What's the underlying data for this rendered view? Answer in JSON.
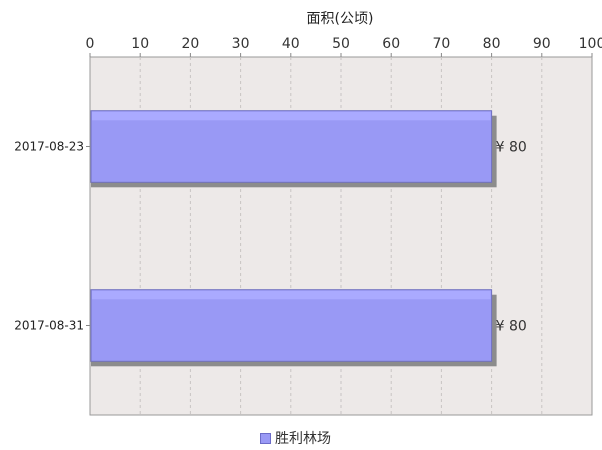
{
  "chart_data": {
    "type": "bar",
    "orientation": "horizontal",
    "xlabel": "面积(公顷)",
    "ylabel": "",
    "title": "",
    "xlim": [
      0,
      100
    ],
    "x_ticks": [
      0,
      10,
      20,
      30,
      40,
      50,
      60,
      70,
      80,
      90,
      100
    ],
    "categories": [
      "2017-08-23",
      "2017-08-31"
    ],
    "series": [
      {
        "name": "胜利林场",
        "values": [
          80,
          80
        ]
      }
    ],
    "data_labels": [
      "¥ 80",
      "¥ 80"
    ],
    "grid": true,
    "legend": "bottom-center",
    "colors": {
      "bar": "#9999f5",
      "bar_top": "#aaaaff",
      "bar_border": "#7070c0",
      "shadow": "#8c8c8c",
      "plot_background": "#ede9e8",
      "grid": "#c8c4c3",
      "axis": "#888888"
    }
  }
}
